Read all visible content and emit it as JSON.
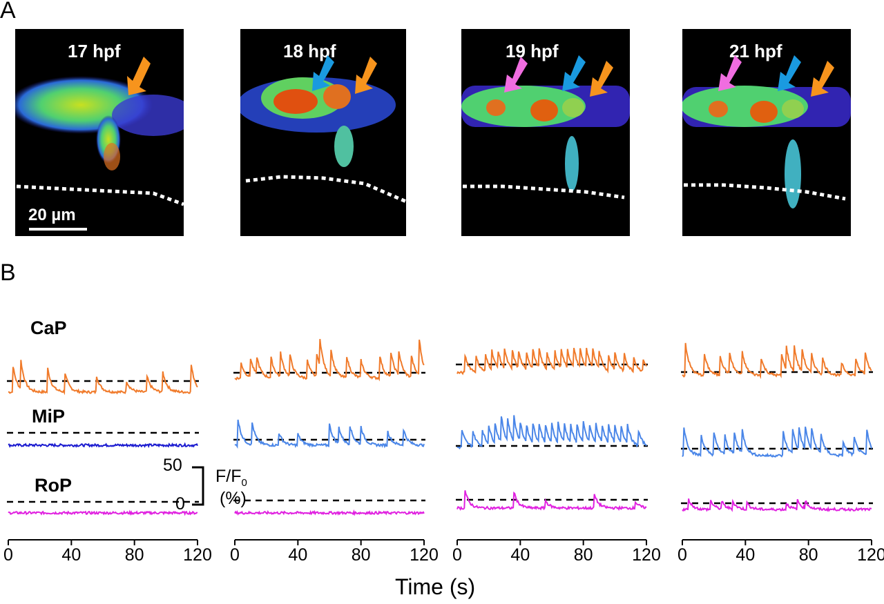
{
  "panel_labels": {
    "a": "A",
    "b": "B"
  },
  "images": [
    {
      "stage": "17 hpf",
      "arrows": [
        "orange"
      ]
    },
    {
      "stage": "18 hpf",
      "arrows": [
        "blue",
        "orange"
      ]
    },
    {
      "stage": "19 hpf",
      "arrows": [
        "pink",
        "blue",
        "orange"
      ]
    },
    {
      "stage": "21 hpf",
      "arrows": [
        "pink",
        "blue",
        "orange"
      ]
    }
  ],
  "scale_bar": {
    "label": "20 µm"
  },
  "colors": {
    "CaP": "#f07a2a",
    "MiP_17hpf": "#1a1ad0",
    "MiP": "#4a86e8",
    "RoP": "#e020e0",
    "arrow_orange": "#f7941d",
    "arrow_blue": "#1a9ae0",
    "arrow_pink": "#f06de0"
  },
  "chart_data": {
    "type": "line",
    "title": "",
    "xlabel": "Time (s)",
    "ylabel": "F/F0 (%)",
    "x_ticks": [
      "0",
      "40",
      "80",
      "120"
    ],
    "xlim": [
      0,
      120
    ],
    "scale_bar": {
      "value": 50,
      "top_label": "50",
      "bottom_label": "0",
      "ylabel_main": "F/F",
      "ylabel_sub": "0",
      "ylabel_unit": "(%)"
    },
    "series_labels": [
      "CaP",
      "MiP",
      "RoP"
    ],
    "panels": [
      {
        "stage": "17 hpf",
        "CaP": {
          "spike_times": [
            3,
            8,
            25,
            36,
            56,
            75,
            88,
            98,
            116
          ],
          "amps": [
            42,
            45,
            38,
            30,
            26,
            18,
            25,
            32,
            44
          ]
        },
        "MiP": {
          "spike_times": [],
          "amps": []
        },
        "RoP": {
          "spike_times": [],
          "amps": []
        }
      },
      {
        "stage": "18 hpf",
        "CaP": {
          "spike_times": [
            4,
            10,
            14,
            23,
            29,
            35,
            46,
            52,
            54,
            61,
            71,
            80,
            92,
            99,
            104,
            112,
            117
          ],
          "amps": [
            25,
            30,
            28,
            32,
            38,
            34,
            28,
            38,
            46,
            42,
            35,
            28,
            36,
            40,
            38,
            35,
            58
          ]
        },
        "MiP": {
          "spike_times": [
            2,
            11,
            28,
            40,
            60,
            66,
            73,
            80,
            97,
            107
          ],
          "amps": [
            42,
            35,
            20,
            18,
            34,
            26,
            30,
            28,
            22,
            25
          ]
        },
        "RoP": {
          "spike_times": [],
          "amps": []
        }
      },
      {
        "stage": "19 hpf",
        "CaP": {
          "spike_times": [
            5,
            12,
            18,
            22,
            26,
            30,
            35,
            39,
            44,
            48,
            52,
            57,
            62,
            66,
            70,
            74,
            78,
            82,
            86,
            90,
            96,
            100,
            106,
            112,
            118
          ],
          "amps": [
            28,
            24,
            26,
            30,
            28,
            32,
            30,
            27,
            29,
            31,
            30,
            28,
            30,
            32,
            30,
            33,
            31,
            30,
            32,
            28,
            24,
            26,
            27,
            22,
            20
          ]
        },
        "MiP": {
          "spike_times": [
            3,
            10,
            16,
            20,
            24,
            28,
            32,
            36,
            40,
            44,
            48,
            52,
            56,
            60,
            64,
            68,
            72,
            76,
            80,
            84,
            88,
            92,
            96,
            100,
            104,
            108,
            115
          ],
          "amps": [
            28,
            24,
            26,
            30,
            32,
            42,
            36,
            40,
            30,
            28,
            32,
            30,
            28,
            30,
            32,
            30,
            28,
            30,
            32,
            28,
            30,
            28,
            30,
            26,
            28,
            30,
            24
          ]
        },
        "RoP": {
          "spike_times": [
            5,
            36,
            56,
            87,
            113
          ],
          "amps": [
            28,
            26,
            12,
            22,
            10
          ]
        }
      },
      {
        "stage": "21 hpf",
        "CaP": {
          "spike_times": [
            2,
            14,
            24,
            30,
            38,
            50,
            63,
            66,
            71,
            76,
            82,
            89,
            101,
            110,
            116
          ],
          "amps": [
            52,
            34,
            32,
            34,
            36,
            28,
            34,
            36,
            40,
            36,
            30,
            26,
            20,
            26,
            34
          ]
        },
        "MiP": {
          "spike_times": [
            1,
            12,
            20,
            27,
            33,
            38,
            64,
            70,
            74,
            78,
            82,
            88,
            102,
            109,
            117
          ],
          "amps": [
            46,
            32,
            36,
            30,
            34,
            36,
            38,
            40,
            36,
            38,
            34,
            30,
            22,
            28,
            40
          ]
        },
        "RoP": {
          "spike_times": [
            4,
            18,
            25,
            32,
            41,
            66,
            73,
            78
          ],
          "amps": [
            16,
            14,
            12,
            12,
            10,
            10,
            14,
            12
          ]
        }
      }
    ]
  }
}
